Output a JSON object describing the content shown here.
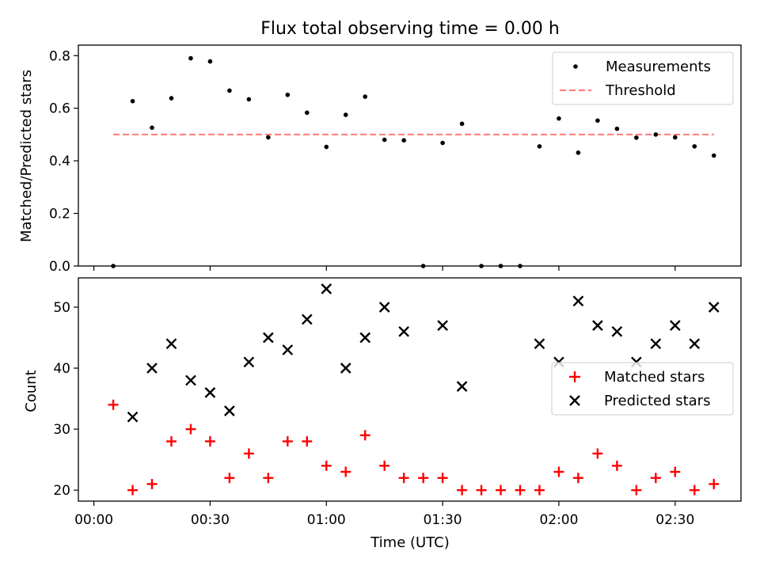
{
  "chart_data": [
    {
      "type": "scatter",
      "title": "Flux total observing time = 0.00 h",
      "xlabel": "",
      "ylabel": "Matched/Predicted stars",
      "ylim": [
        0,
        0.84
      ],
      "xlim_minutes": [
        -4,
        167
      ],
      "yticks": [
        0.0,
        0.2,
        0.4,
        0.6,
        0.8
      ],
      "ytick_labels": [
        "0.0",
        "0.2",
        "0.4",
        "0.6",
        "0.8"
      ],
      "legend_position": "upper right",
      "grid": false,
      "x_times": [
        "00:05",
        "00:10",
        "00:15",
        "00:20",
        "00:25",
        "00:30",
        "00:35",
        "00:40",
        "00:45",
        "00:50",
        "00:55",
        "01:00",
        "01:05",
        "01:10",
        "01:15",
        "01:20",
        "01:25",
        "01:30",
        "01:35",
        "01:40",
        "01:45",
        "01:50",
        "01:55",
        "02:00",
        "02:05",
        "02:10",
        "02:15",
        "02:20",
        "02:25",
        "02:30",
        "02:35",
        "02:40"
      ],
      "series": [
        {
          "name": "Measurements",
          "marker": "dot",
          "color": "#000000",
          "values": [
            0.0,
            0.627,
            0.526,
            0.638,
            0.79,
            0.778,
            0.667,
            0.634,
            0.489,
            0.651,
            0.583,
            0.453,
            0.575,
            0.644,
            0.48,
            0.478,
            0.0,
            0.468,
            0.541,
            0.0,
            0.0,
            0.0,
            0.455,
            0.561,
            0.431,
            0.553,
            0.522,
            0.488,
            0.5,
            0.489,
            0.455,
            0.42
          ]
        },
        {
          "name": "Threshold",
          "style": "dashed",
          "color": "#ff7f7f",
          "values": [
            0.5,
            0.5,
            0.5,
            0.5,
            0.5,
            0.5,
            0.5,
            0.5,
            0.5,
            0.5,
            0.5,
            0.5,
            0.5,
            0.5,
            0.5,
            0.5,
            0.5,
            0.5,
            0.5,
            0.5,
            0.5,
            0.5,
            0.5,
            0.5,
            0.5,
            0.5,
            0.5,
            0.5,
            0.5,
            0.5,
            0.5,
            0.5
          ]
        }
      ]
    },
    {
      "type": "scatter",
      "title": "",
      "xlabel": "Time (UTC)",
      "ylabel": "Count",
      "ylim": [
        18.2,
        54.8
      ],
      "xlim_minutes": [
        -4,
        167
      ],
      "yticks": [
        20,
        30,
        40,
        50
      ],
      "ytick_labels": [
        "20",
        "30",
        "40",
        "50"
      ],
      "xticks_minutes": [
        0,
        30,
        60,
        90,
        120,
        150
      ],
      "xtick_labels": [
        "00:00",
        "00:30",
        "01:00",
        "01:30",
        "02:00",
        "02:30"
      ],
      "legend_position": "center right",
      "grid": false,
      "series": [
        {
          "name": "Matched stars",
          "marker": "plus",
          "color": "#ff0000",
          "x_times": [
            "00:05",
            "00:10",
            "00:15",
            "00:20",
            "00:25",
            "00:30",
            "00:35",
            "00:40",
            "00:45",
            "00:50",
            "00:55",
            "01:00",
            "01:05",
            "01:10",
            "01:15",
            "01:20",
            "01:25",
            "01:30",
            "01:35",
            "01:40",
            "01:45",
            "01:50",
            "01:55",
            "02:00",
            "02:05",
            "02:10",
            "02:15",
            "02:20",
            "02:25",
            "02:30",
            "02:35",
            "02:40"
          ],
          "values": [
            34,
            20,
            21,
            28,
            30,
            28,
            22,
            26,
            22,
            28,
            28,
            24,
            23,
            29,
            24,
            22,
            22,
            22,
            20,
            20,
            20,
            20,
            20,
            23,
            22,
            26,
            24,
            20,
            22,
            23,
            20,
            21
          ]
        },
        {
          "name": "Predicted stars",
          "marker": "x",
          "color": "#000000",
          "x_times": [
            "00:10",
            "00:15",
            "00:20",
            "00:25",
            "00:30",
            "00:35",
            "00:40",
            "00:45",
            "00:50",
            "00:55",
            "01:00",
            "01:05",
            "01:10",
            "01:15",
            "01:20",
            "01:30",
            "01:35",
            "01:55",
            "02:00",
            "02:05",
            "02:10",
            "02:15",
            "02:20",
            "02:25",
            "02:30",
            "02:35",
            "02:40"
          ],
          "values": [
            32,
            40,
            44,
            38,
            36,
            33,
            41,
            45,
            43,
            48,
            53,
            40,
            45,
            50,
            46,
            47,
            37,
            44,
            41,
            51,
            47,
            46,
            41,
            44,
            47,
            44,
            50
          ]
        }
      ]
    }
  ]
}
